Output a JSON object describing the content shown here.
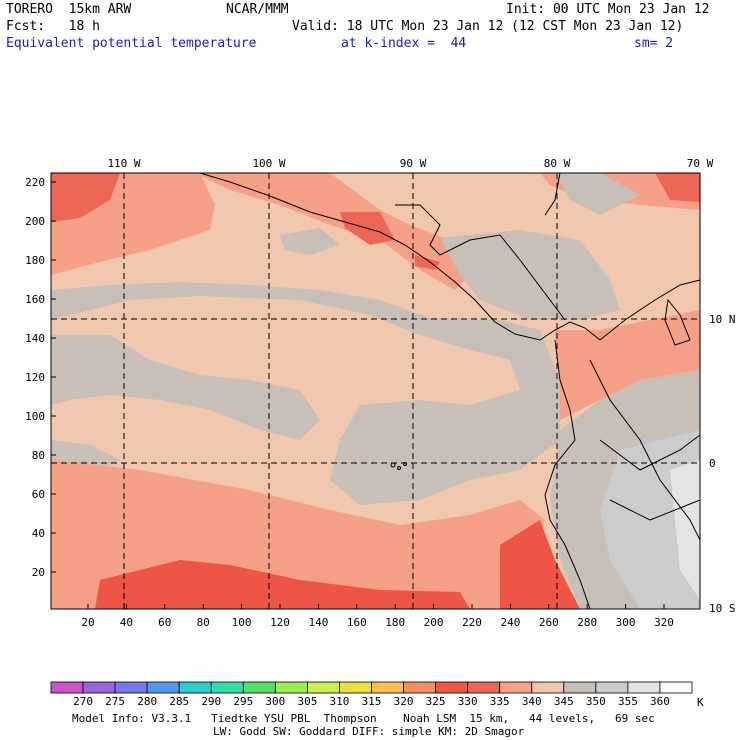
{
  "header": {
    "model": "TORERO  15km ARW",
    "org": "NCAR/MMM",
    "init": "Init: 00 UTC Mon 23 Jan 12",
    "fcst": "Fcst:   18 h",
    "valid": "Valid: 18 UTC Mon 23 Jan 12 (12 CST Mon 23 Jan 12)",
    "field": "Equivalent potential temperature",
    "level": "at k-index =  44",
    "smoothing": "sm= 2"
  },
  "map": {
    "top_lon_labels": [
      "110 W",
      "100 W",
      "90 W",
      "80 W",
      "70 W"
    ],
    "right_lat_labels": [
      "10 N",
      "0",
      "10 S"
    ],
    "y_axis_labels": [
      "220",
      "200",
      "180",
      "160",
      "140",
      "120",
      "100",
      "80",
      "60",
      "40",
      "20"
    ],
    "x_axis_labels": [
      "20",
      "40",
      "60",
      "80",
      "100",
      "120",
      "140",
      "160",
      "180",
      "200",
      "220",
      "240",
      "260",
      "280",
      "300",
      "320"
    ]
  },
  "colorbar": {
    "unit": "K",
    "levels": [
      "270",
      "275",
      "280",
      "285",
      "290",
      "295",
      "300",
      "305",
      "310",
      "315",
      "320",
      "325",
      "330",
      "335",
      "340",
      "345",
      "350",
      "355",
      "360"
    ],
    "colors": [
      "#cc55cc",
      "#9966dd",
      "#7777ee",
      "#5599ee",
      "#33cccc",
      "#33ddaa",
      "#55dd66",
      "#99ee55",
      "#ccee55",
      "#eedd44",
      "#ffbb55",
      "#f78e63",
      "#ee5544",
      "#ee6655",
      "#f7a088",
      "#f1c7ae",
      "#c8bfb9",
      "#cccccc",
      "#e4e4e4",
      "#ffffff"
    ]
  },
  "footer": {
    "line1": "Model Info: V3.3.1   Tiedtke YSU PBL  Thompson    Noah LSM  15 km,   44 levels,   69 sec",
    "line2": "LW: Godd SW: Goddard DIFF: simple KM: 2D Smagor"
  }
}
